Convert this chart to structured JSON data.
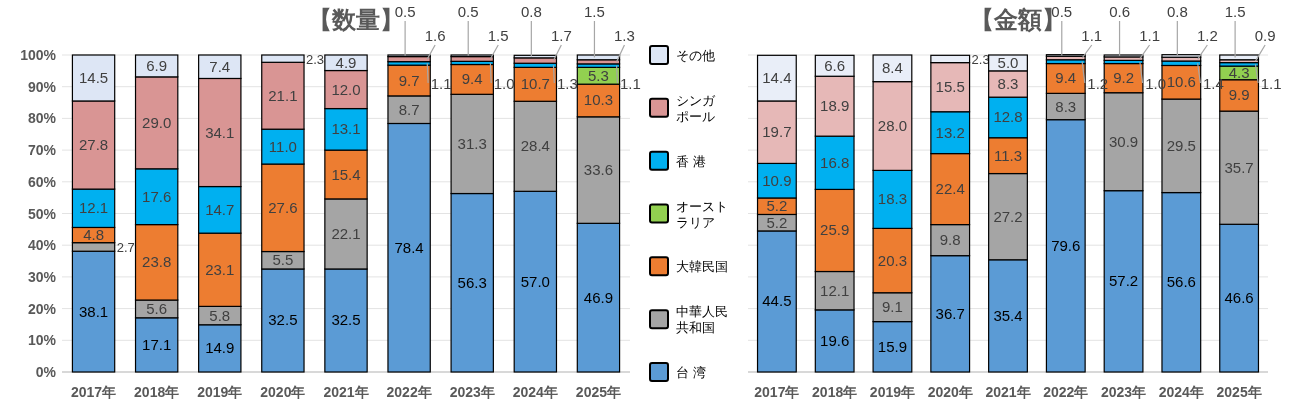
{
  "chart_data": [
    {
      "type": "bar",
      "title": "【数量】",
      "stacked": true,
      "grid": "y",
      "legend": "right",
      "categories": [
        "2017年",
        "2018年",
        "2019年",
        "2020年",
        "2021年",
        "2022年",
        "2023年",
        "2024年",
        "2025年"
      ],
      "ylim": [
        0,
        100
      ],
      "yticks": [
        {
          "value": 0,
          "label": "0%"
        },
        {
          "value": 10,
          "label": "10%"
        },
        {
          "value": 20,
          "label": "20%"
        },
        {
          "value": 30,
          "label": "30%"
        },
        {
          "value": 40,
          "label": "40%"
        },
        {
          "value": 50,
          "label": "50%"
        },
        {
          "value": 60,
          "label": "60%"
        },
        {
          "value": 70,
          "label": "70%"
        },
        {
          "value": 80,
          "label": "80%"
        },
        {
          "value": 90,
          "label": "90%"
        },
        {
          "value": 100,
          "label": "100%"
        }
      ],
      "series": [
        {
          "name": "台 湾",
          "color": "#5b9bd5",
          "values": [
            38.1,
            17.1,
            14.9,
            32.5,
            32.5,
            78.4,
            56.3,
            57.0,
            46.9
          ],
          "value_labels": [
            "38.1",
            "17.1",
            "14.9",
            "32.5",
            "32.5",
            "78.4",
            "56.3",
            "57.0",
            "46.9"
          ]
        },
        {
          "name": "中華人民共和国",
          "color": "#a5a5a5",
          "values": [
            2.7,
            5.6,
            5.8,
            5.5,
            22.1,
            8.7,
            31.3,
            28.4,
            33.6
          ],
          "value_labels": [
            "2.7",
            "5.6",
            "5.8",
            "5.5",
            "22.1",
            "8.7",
            "31.3",
            "28.4",
            "33.6"
          ]
        },
        {
          "name": "大韓民国",
          "color": "#ed7d31",
          "values": [
            4.8,
            23.8,
            23.1,
            27.6,
            15.4,
            9.7,
            9.4,
            10.7,
            10.3
          ],
          "value_labels": [
            "4.8",
            "23.8",
            "23.1",
            "27.6",
            "15.4",
            "9.7",
            "9.4",
            "10.7",
            "10.3"
          ]
        },
        {
          "name": "オーストラリア",
          "color": "#92d050",
          "values": [
            null,
            null,
            null,
            null,
            null,
            null,
            null,
            null,
            5.3
          ],
          "value_labels": [
            null,
            null,
            null,
            null,
            null,
            null,
            null,
            null,
            "5.3"
          ]
        },
        {
          "name": "香 港",
          "color": "#00b0f0",
          "values": [
            12.1,
            17.6,
            14.7,
            11.0,
            13.1,
            1.1,
            1.0,
            1.3,
            1.1
          ],
          "value_labels": [
            "12.1",
            "17.6",
            "14.7",
            "11.0",
            "13.1",
            "1.1",
            "1.0",
            "1.3",
            "1.1"
          ]
        },
        {
          "name": "シンガポール",
          "color": "#d99594",
          "values": [
            27.8,
            29.0,
            34.1,
            21.1,
            12.0,
            1.6,
            1.5,
            1.7,
            1.3
          ],
          "value_labels": [
            "27.8",
            "29.0",
            "34.1",
            "21.1",
            "12.0",
            "1.6",
            "1.5",
            "1.7",
            "1.3"
          ]
        },
        {
          "name": "その他",
          "color": "#dde6f5",
          "values": [
            14.5,
            6.9,
            7.4,
            2.3,
            4.9,
            0.5,
            0.5,
            0.8,
            1.5
          ],
          "value_labels": [
            "14.5",
            "6.9",
            "7.4",
            "2.3",
            "4.9",
            "0.5",
            "0.5",
            "0.8",
            "1.5"
          ]
        }
      ]
    },
    {
      "type": "bar",
      "title": "【金額】",
      "stacked": true,
      "grid": "y",
      "tick_labels": "x",
      "categories": [
        "2017年",
        "2018年",
        "2019年",
        "2020年",
        "2021年",
        "2022年",
        "2023年",
        "2024年",
        "2025年"
      ],
      "ylim": [
        0,
        100
      ],
      "yticks": [
        {
          "value": 0,
          "label": null
        },
        {
          "value": 10,
          "label": null
        },
        {
          "value": 20,
          "label": null
        },
        {
          "value": 30,
          "label": null
        },
        {
          "value": 40,
          "label": null
        },
        {
          "value": 50,
          "label": null
        },
        {
          "value": 60,
          "label": null
        },
        {
          "value": 70,
          "label": null
        },
        {
          "value": 80,
          "label": null
        },
        {
          "value": 90,
          "label": null
        },
        {
          "value": 100,
          "label": null
        }
      ],
      "series": [
        {
          "color": "#5b9bd5",
          "values": [
            44.5,
            19.6,
            15.9,
            36.7,
            35.4,
            79.6,
            57.2,
            56.6,
            46.6
          ],
          "value_labels": [
            "44.5",
            "19.6",
            "15.9",
            "36.7",
            "35.4",
            "79.6",
            "57.2",
            "56.6",
            "46.6"
          ]
        },
        {
          "color": "#a5a5a5",
          "values": [
            5.2,
            12.1,
            9.1,
            9.8,
            27.2,
            8.3,
            30.9,
            29.5,
            35.7
          ],
          "value_labels": [
            "5.2",
            "12.1",
            "9.1",
            "9.8",
            "27.2",
            "8.3",
            "30.9",
            "29.5",
            "35.7"
          ]
        },
        {
          "color": "#ed7d31",
          "values": [
            5.2,
            25.9,
            20.3,
            22.4,
            11.3,
            9.4,
            9.2,
            10.6,
            9.9
          ],
          "value_labels": [
            "5.2",
            "25.9",
            "20.3",
            "22.4",
            "11.3",
            "9.4",
            "9.2",
            "10.6",
            "9.9"
          ]
        },
        {
          "color": "#92d050",
          "values": [
            null,
            null,
            null,
            null,
            null,
            null,
            null,
            null,
            4.3
          ],
          "value_labels": [
            null,
            null,
            null,
            null,
            null,
            null,
            null,
            null,
            "4.3"
          ]
        },
        {
          "color": "#00b0f0",
          "values": [
            10.9,
            16.8,
            18.3,
            13.2,
            12.8,
            1.2,
            1.0,
            1.4,
            1.1
          ],
          "value_labels": [
            "10.9",
            "16.8",
            "18.3",
            "13.2",
            "12.8",
            "1.2",
            "1.0",
            "1.4",
            "1.1"
          ]
        },
        {
          "color": "#e6b8b7",
          "values": [
            19.7,
            18.9,
            28.0,
            15.5,
            8.3,
            1.1,
            1.1,
            1.2,
            0.9
          ],
          "value_labels": [
            "19.7",
            "18.9",
            "28.0",
            "15.5",
            "8.3",
            "1.1",
            "1.1",
            "1.2",
            "0.9"
          ]
        },
        {
          "color": "#e9eef8",
          "values": [
            14.4,
            6.6,
            8.4,
            2.3,
            5.0,
            0.5,
            0.6,
            0.8,
            1.5
          ],
          "value_labels": [
            "14.4",
            "6.6",
            "8.4",
            "2.3",
            "5.0",
            "0.5",
            "0.6",
            "0.8",
            "1.5"
          ]
        }
      ]
    }
  ]
}
